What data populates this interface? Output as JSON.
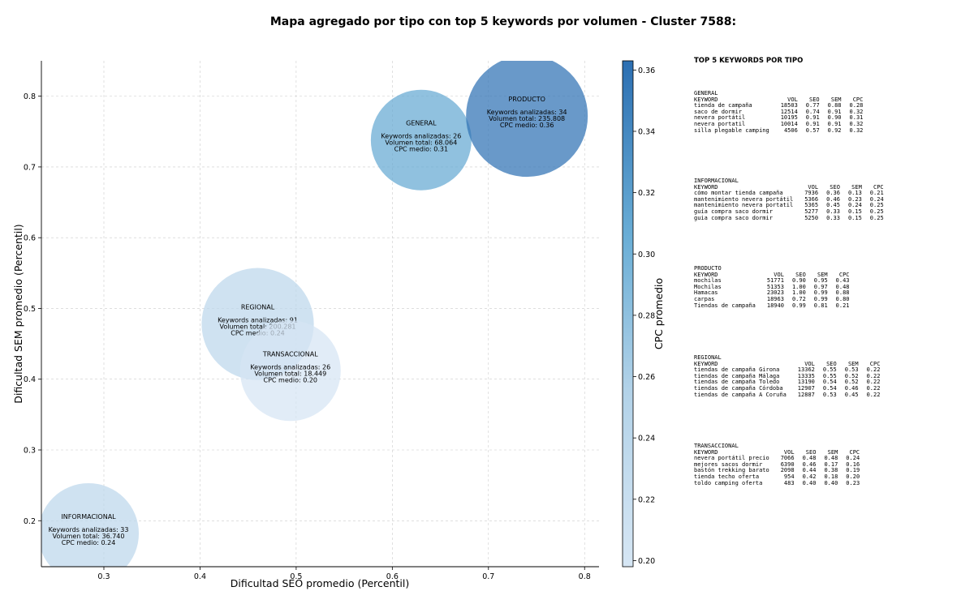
{
  "chart_data": {
    "type": "scatter",
    "title": "Mapa agregado por tipo con top 5 keywords por volumen - Cluster 7588:",
    "xlabel": "Dificultad SEO promedio (Percentil)",
    "ylabel": "Dificultad SEM promedio (Percentil)",
    "xlim": [
      0.235,
      0.815
    ],
    "ylim": [
      0.135,
      0.85
    ],
    "xticks": [
      0.3,
      0.4,
      0.5,
      0.6,
      0.7,
      0.8
    ],
    "yticks": [
      0.2,
      0.3,
      0.4,
      0.5,
      0.6,
      0.7,
      0.8
    ],
    "grid": true,
    "colorbar": {
      "label": "CPC promedio",
      "range": [
        0.198,
        0.363
      ],
      "ticks": [
        0.2,
        0.22,
        0.24,
        0.26,
        0.28,
        0.3,
        0.32,
        0.34,
        0.36
      ],
      "colors": [
        "#d6e6f4",
        "#2c6fb2"
      ]
    },
    "bubbles": [
      {
        "name": "GENERAL",
        "x": 0.63,
        "y": 0.738,
        "volume": 68064,
        "cpc": 0.31,
        "lines": [
          "Keywords analizadas: 26",
          "Volumen total: 68.064",
          "CPC medio: 0.31"
        ]
      },
      {
        "name": "PRODUCTO",
        "x": 0.74,
        "y": 0.772,
        "volume": 235808,
        "cpc": 0.36,
        "lines": [
          "Keywords analizadas: 34",
          "Volumen total: 235.808",
          "CPC medio: 0.36"
        ]
      },
      {
        "name": "REGIONAL",
        "x": 0.46,
        "y": 0.478,
        "volume": 200281,
        "cpc": 0.24,
        "lines": [
          "Keywords analizadas: 91",
          "Volumen total: 200.281",
          "CPC medio: 0.24"
        ]
      },
      {
        "name": "TRANSACCIONAL",
        "x": 0.494,
        "y": 0.412,
        "volume": 18449,
        "cpc": 0.2,
        "lines": [
          "Keywords analizadas: 26",
          "Volumen total: 18.449",
          "CPC medio: 0.20"
        ]
      },
      {
        "name": "INFORMACIONAL",
        "x": 0.284,
        "y": 0.182,
        "volume": 36740,
        "cpc": 0.24,
        "lines": [
          "Keywords analizadas: 33",
          "Volumen total: 36.740",
          "CPC medio: 0.24"
        ]
      }
    ]
  },
  "side_panel": {
    "title": "TOP 5 KEYWORDS POR TIPO",
    "columns": [
      "KEYWORD",
      "VOL",
      "SEO",
      "SEM",
      "CPC"
    ],
    "groups": [
      {
        "name": "GENERAL",
        "rows": [
          [
            "tienda de campaña",
            "18503",
            "0.77",
            "0.88",
            "0.28"
          ],
          [
            "saco de dormir",
            "12514",
            "0.74",
            "0.91",
            "0.32"
          ],
          [
            "nevera portátil",
            "10195",
            "0.91",
            "0.90",
            "0.31"
          ],
          [
            "nevera portatil",
            "10014",
            "0.91",
            "0.91",
            "0.32"
          ],
          [
            "silla plegable camping",
            "4506",
            "0.57",
            "0.92",
            "0.32"
          ]
        ]
      },
      {
        "name": "INFORMACIONAL",
        "rows": [
          [
            "cómo montar tienda campaña",
            "7936",
            "0.36",
            "0.13",
            "0.21"
          ],
          [
            "mantenimiento nevera portátil",
            "5366",
            "0.46",
            "0.23",
            "0.24"
          ],
          [
            "mantenimiento nevera portatil",
            "5365",
            "0.45",
            "0.24",
            "0.25"
          ],
          [
            "guía compra saco dormir",
            "5277",
            "0.33",
            "0.15",
            "0.25"
          ],
          [
            "guia compra saco dormir",
            "5250",
            "0.33",
            "0.15",
            "0.25"
          ]
        ]
      },
      {
        "name": "PRODUCTO",
        "rows": [
          [
            "mochilas",
            "51771",
            "0.90",
            "0.95",
            "0.43"
          ],
          [
            "Mochilas",
            "51353",
            "1.00",
            "0.97",
            "0.48"
          ],
          [
            "Hamacas",
            "23023",
            "1.00",
            "0.99",
            "0.88"
          ],
          [
            "carpas",
            "18963",
            "0.72",
            "0.99",
            "0.80"
          ],
          [
            "Tiendas de campaña",
            "18940",
            "0.99",
            "0.81",
            "0.21"
          ]
        ]
      },
      {
        "name": "REGIONAL",
        "rows": [
          [
            "tiendas de campaña Girona",
            "13362",
            "0.55",
            "0.53",
            "0.22"
          ],
          [
            "tiendas de campaña Málaga",
            "13335",
            "0.55",
            "0.52",
            "0.22"
          ],
          [
            "tiendas de campaña Toledo",
            "13190",
            "0.54",
            "0.52",
            "0.22"
          ],
          [
            "tiendas de campaña Córdoba",
            "12907",
            "0.54",
            "0.46",
            "0.22"
          ],
          [
            "tiendas de campaña A Coruña",
            "12887",
            "0.53",
            "0.45",
            "0.22"
          ]
        ]
      },
      {
        "name": "TRANSACCIONAL",
        "rows": [
          [
            "nevera portátil precio",
            "7066",
            "0.48",
            "0.48",
            "0.24"
          ],
          [
            "mejores sacos dormir",
            "6390",
            "0.46",
            "0.17",
            "0.16"
          ],
          [
            "bastón trekking barato",
            "2098",
            "0.44",
            "0.38",
            "0.19"
          ],
          [
            "tienda techo oferta",
            "954",
            "0.42",
            "0.18",
            "0.20"
          ],
          [
            "toldo camping oferta",
            "483",
            "0.40",
            "0.40",
            "0.23"
          ]
        ]
      }
    ]
  }
}
